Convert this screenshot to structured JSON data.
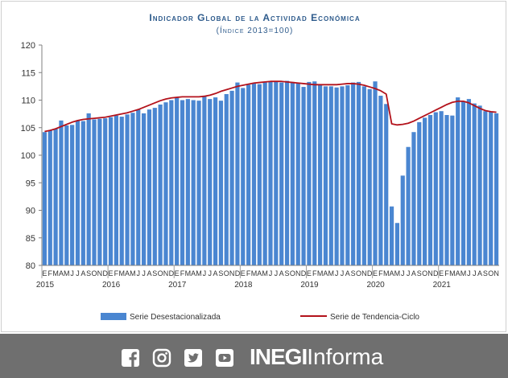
{
  "title": "Indicador Global de la Actividad Económica",
  "subtitle": "(Índice 2013=100)",
  "chart_data": {
    "type": "bar",
    "title": "Indicador Global de la Actividad Económica",
    "subtitle": "(Índice 2013=100)",
    "xlabel": "",
    "ylabel": "",
    "ylim": [
      80,
      120
    ],
    "yticks": [
      "80",
      "85",
      "90",
      "95",
      "100",
      "105",
      "110",
      "115",
      "120"
    ],
    "grid": false,
    "legend_position": "bottom",
    "month_labels": [
      "E",
      "F",
      "M",
      "A",
      "M",
      "J",
      "J",
      "A",
      "S",
      "O",
      "N",
      "D",
      "E",
      "F",
      "M",
      "A",
      "M",
      "J",
      "J",
      "A",
      "S",
      "O",
      "N",
      "D",
      "E",
      "F",
      "M",
      "A",
      "M",
      "J",
      "J",
      "A",
      "S",
      "O",
      "N",
      "D",
      "E",
      "F",
      "M",
      "A",
      "M",
      "J",
      "J",
      "A",
      "S",
      "O",
      "N",
      "D",
      "E",
      "F",
      "M",
      "A",
      "M",
      "J",
      "J",
      "A",
      "S",
      "O",
      "N",
      "D",
      "E",
      "F",
      "M",
      "A",
      "M",
      "J",
      "J",
      "A",
      "S",
      "O",
      "N",
      "D",
      "E",
      "F",
      "M",
      "A",
      "M",
      "J",
      "J",
      "A",
      "S",
      "O",
      "N"
    ],
    "years": [
      {
        "label": "2015",
        "start_index": 0
      },
      {
        "label": "2016",
        "start_index": 12
      },
      {
        "label": "2017",
        "start_index": 24
      },
      {
        "label": "2018",
        "start_index": 36
      },
      {
        "label": "2019",
        "start_index": 48
      },
      {
        "label": "2020",
        "start_index": 60
      },
      {
        "label": "2021",
        "start_index": 72
      }
    ],
    "series": [
      {
        "name": "Serie Desestacionalizada",
        "kind": "bar",
        "color": "#4a86d1",
        "values": [
          104.2,
          104.5,
          104.8,
          106.3,
          105.4,
          105.5,
          106.3,
          106.2,
          107.6,
          106.5,
          106.6,
          106.7,
          106.9,
          107.2,
          107.0,
          107.4,
          107.7,
          108.3,
          107.6,
          108.3,
          108.6,
          109.2,
          109.6,
          110.0,
          110.4,
          110.0,
          110.2,
          110.0,
          109.9,
          110.8,
          110.2,
          110.5,
          109.9,
          111.1,
          111.7,
          113.2,
          112.2,
          112.8,
          113.0,
          112.9,
          113.2,
          113.4,
          113.5,
          113.2,
          113.5,
          113.3,
          113.0,
          112.4,
          113.3,
          113.4,
          112.8,
          112.5,
          112.5,
          112.3,
          112.5,
          112.7,
          113.2,
          113.3,
          112.5,
          112.0,
          113.4,
          110.8,
          109.3,
          90.7,
          87.7,
          96.3,
          101.5,
          104.2,
          106.0,
          106.8,
          107.3,
          107.8,
          108.0,
          107.3,
          107.2,
          110.5,
          109.8,
          110.2,
          109.4,
          109.0,
          108.0,
          107.9,
          107.6
        ]
      },
      {
        "name": "Serie de Tendencia-Ciclo",
        "kind": "line",
        "color": "#b3121b",
        "values": [
          104.3,
          104.5,
          104.8,
          105.2,
          105.6,
          106.0,
          106.3,
          106.5,
          106.6,
          106.7,
          106.8,
          106.9,
          107.1,
          107.3,
          107.5,
          107.7,
          108.0,
          108.3,
          108.7,
          109.1,
          109.5,
          109.9,
          110.2,
          110.4,
          110.5,
          110.6,
          110.6,
          110.6,
          110.6,
          110.7,
          110.9,
          111.2,
          111.6,
          111.9,
          112.2,
          112.5,
          112.7,
          112.9,
          113.1,
          113.2,
          113.3,
          113.4,
          113.4,
          113.4,
          113.3,
          113.2,
          113.1,
          113.0,
          112.9,
          112.8,
          112.8,
          112.8,
          112.8,
          112.8,
          112.9,
          113.0,
          113.0,
          112.9,
          112.7,
          112.4,
          112.1,
          111.7,
          111.1,
          105.7,
          105.5,
          105.6,
          105.8,
          106.2,
          106.7,
          107.2,
          107.7,
          108.2,
          108.7,
          109.2,
          109.6,
          109.8,
          109.8,
          109.5,
          109.0,
          108.5,
          108.1,
          107.9,
          107.8
        ]
      }
    ]
  },
  "legend": {
    "bars_label": "Serie Desestacionalizada",
    "line_label": "Serie de Tendencia-Ciclo"
  },
  "footer": {
    "icons": [
      "facebook-icon",
      "instagram-icon",
      "twitter-icon",
      "youtube-icon"
    ],
    "brand_bold": "INEGI",
    "brand_light": "Informa",
    "background": "#6f6f6f"
  }
}
